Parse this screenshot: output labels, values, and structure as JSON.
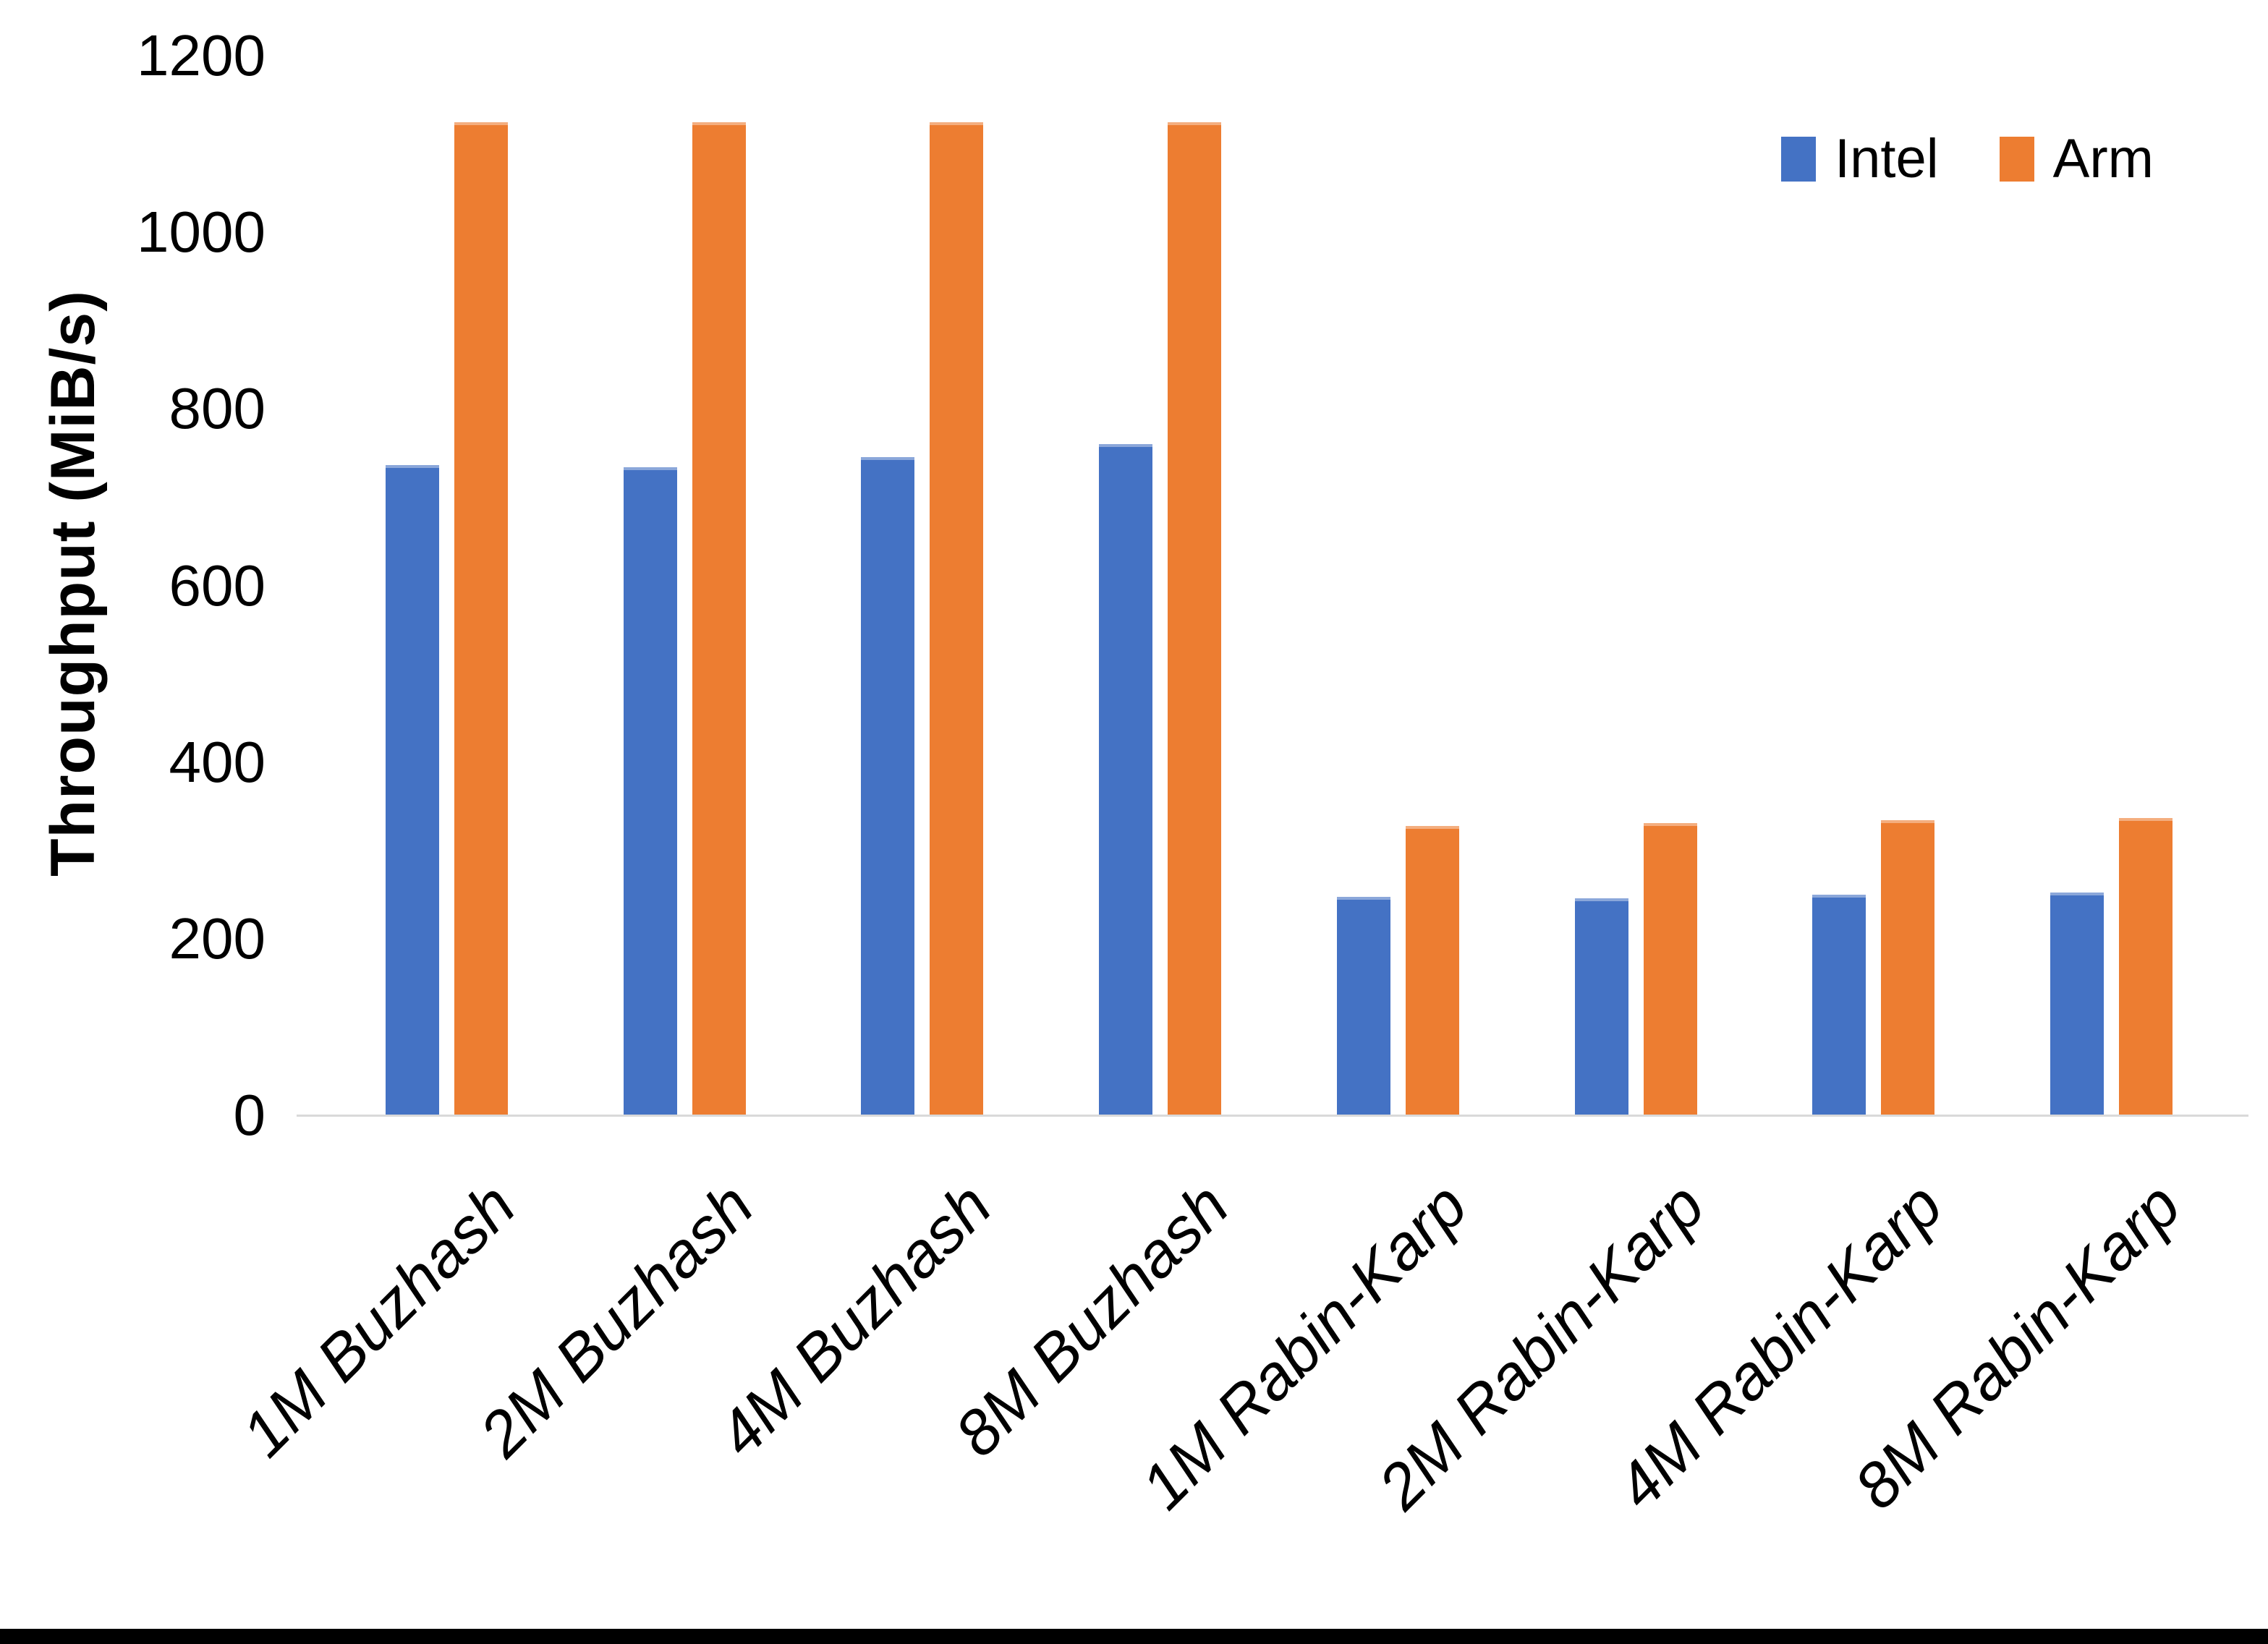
{
  "chart_data": {
    "type": "bar",
    "title": "",
    "ylabel": "Throughput (MiB/s)",
    "xlabel": "",
    "categories": [
      "1M Buzhash",
      "2M Buzhash",
      "4M Buzhash",
      "8M Buzhash",
      "1M Rabin-Karp",
      "2M Rabin-Karp",
      "4M Rabin-Karp",
      "8M Rabin-Karp"
    ],
    "series": [
      {
        "name": "Intel",
        "color": "#4472C4",
        "values": [
          736,
          734,
          745,
          760,
          247,
          246,
          250,
          252
        ]
      },
      {
        "name": "Arm",
        "color": "#ED7D31",
        "values": [
          1125,
          1125,
          1125,
          1125,
          328,
          331,
          334,
          337
        ]
      }
    ],
    "ylim": [
      0,
      1200
    ],
    "yticks": [
      0,
      200,
      400,
      600,
      800,
      1000,
      1200
    ],
    "grid": "none",
    "legend_position": "top-right",
    "axis_line_color": "#D9D9D9",
    "text_color": "#000000",
    "background_color": "#FFFFFF",
    "bottom_strip_color": "#000000"
  }
}
